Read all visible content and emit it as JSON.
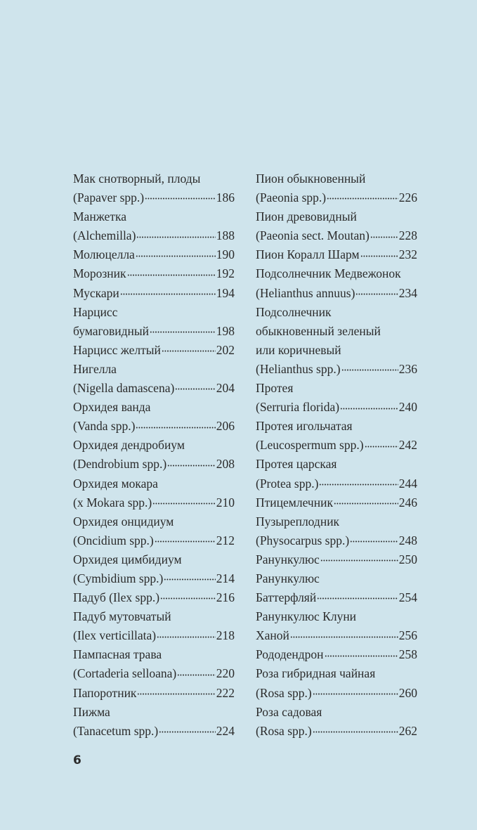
{
  "left_column": [
    {
      "lines": [
        "Мак снотворный, плоды",
        "(Papaver spp.)"
      ],
      "page": "186"
    },
    {
      "lines": [
        "Манжетка",
        "(Alchemilla)"
      ],
      "page": "188"
    },
    {
      "lines": [
        "Молюцелла"
      ],
      "page": "190"
    },
    {
      "lines": [
        "Морозник"
      ],
      "page": "192"
    },
    {
      "lines": [
        "Мускари"
      ],
      "page": "194"
    },
    {
      "lines": [
        "Нарцисс",
        "бумаговидный"
      ],
      "page": "198"
    },
    {
      "lines": [
        "Нарцисс желтый"
      ],
      "page": "202"
    },
    {
      "lines": [
        "Нигелла",
        "(Nigella damascena)"
      ],
      "page": "204"
    },
    {
      "lines": [
        "Орхидея ванда",
        "(Vanda spp.)"
      ],
      "page": "206"
    },
    {
      "lines": [
        "Орхидея дендробиум",
        "(Dendrobium spp.)"
      ],
      "page": "208"
    },
    {
      "lines": [
        "Орхидея мокара",
        "(x Mokara spp.)"
      ],
      "page": "210"
    },
    {
      "lines": [
        "Орхидея онцидиум",
        "(Oncidium spp.)"
      ],
      "page": "212"
    },
    {
      "lines": [
        "Орхидея цимбидиум",
        "(Cymbidium spp.)"
      ],
      "page": "214"
    },
    {
      "lines": [
        "Падуб (Ilex spp.)"
      ],
      "page": "216"
    },
    {
      "lines": [
        "Падуб мутовчатый",
        "(Ilex verticillata)"
      ],
      "page": "218"
    },
    {
      "lines": [
        "Пампасная трава",
        "(Cortaderia selloana)"
      ],
      "page": "220"
    },
    {
      "lines": [
        "Папоротник"
      ],
      "page": "222"
    },
    {
      "lines": [
        "Пижма",
        "(Tanacetum spp.)"
      ],
      "page": "224"
    }
  ],
  "right_column": [
    {
      "lines": [
        "Пион обыкновенный",
        "(Paeonia spp.)"
      ],
      "page": "226"
    },
    {
      "lines": [
        "Пион древовидный",
        "(Paeonia sect. Moutan)"
      ],
      "page": "228"
    },
    {
      "lines": [
        "Пион Коралл Шарм"
      ],
      "page": "232"
    },
    {
      "lines": [
        "Подсолнечник Медвежонок",
        "(Helianthus annuus)"
      ],
      "page": "234"
    },
    {
      "lines": [
        "Подсолнечник",
        "обыкновенный зеленый",
        "или коричневый",
        "(Helianthus spp.)"
      ],
      "page": "236"
    },
    {
      "lines": [
        "Протея",
        "(Serruria florida)"
      ],
      "page": "240"
    },
    {
      "lines": [
        "Протея игольчатая",
        "(Leucospermum spp.)"
      ],
      "page": "242"
    },
    {
      "lines": [
        "Протея царская",
        "(Protea spp.)"
      ],
      "page": "244"
    },
    {
      "lines": [
        "Птицемлечник"
      ],
      "page": "246"
    },
    {
      "lines": [
        "Пузыреплодник",
        "(Physocarpus spp.)"
      ],
      "page": "248"
    },
    {
      "lines": [
        "Ранункулюс"
      ],
      "page": "250"
    },
    {
      "lines": [
        "Ранункулюс",
        "Баттерфляй"
      ],
      "page": "254"
    },
    {
      "lines": [
        "Ранункулюс Клуни",
        "Ханой"
      ],
      "page": "256"
    },
    {
      "lines": [
        "Рододендрон"
      ],
      "page": "258"
    },
    {
      "lines": [
        "Роза гибридная чайная",
        "(Rosa spp.)"
      ],
      "page": "260"
    },
    {
      "lines": [
        "Роза садовая",
        "(Rosa spp.)"
      ],
      "page": "262"
    }
  ],
  "page_number": "6",
  "colors": {
    "background": "#cfe4ec",
    "text": "#2b2b2b"
  }
}
